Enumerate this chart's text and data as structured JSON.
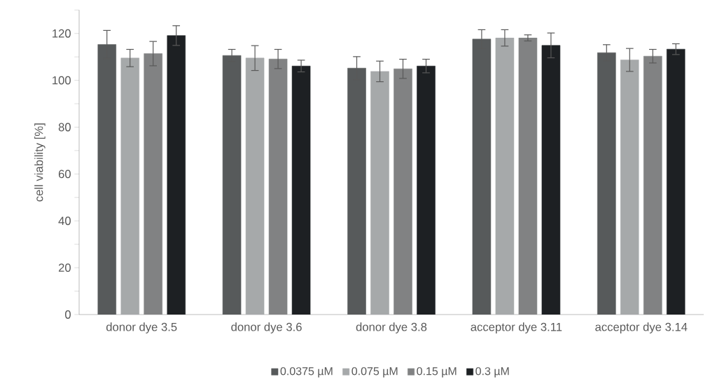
{
  "chart_data": {
    "type": "bar",
    "ylabel": "cell viability [%]",
    "categories": [
      "donor dye 3.5",
      "donor dye 3.6",
      "donor dye 3.8",
      "acceptor dye 3.11",
      "acceptor dye 3.14"
    ],
    "series": [
      {
        "name": "0.0375 µM",
        "color": "#575a5b",
        "values": [
          115.3,
          110.6,
          105.2,
          117.6,
          111.8
        ],
        "errors": [
          6.0,
          2.6,
          4.9,
          4.0,
          3.4
        ]
      },
      {
        "name": "0.075 µM",
        "color": "#a6a9aa",
        "values": [
          109.5,
          109.5,
          103.8,
          118.1,
          108.7
        ],
        "errors": [
          3.7,
          5.3,
          4.4,
          3.5,
          4.9
        ]
      },
      {
        "name": "0.15 µM",
        "color": "#818283",
        "values": [
          111.4,
          109.1,
          104.9,
          118.1,
          110.3
        ],
        "errors": [
          5.2,
          4.1,
          4.1,
          1.3,
          2.9
        ]
      },
      {
        "name": "0.3 µM",
        "color": "#1d2023",
        "values": [
          119.1,
          106.1,
          106.1,
          114.9,
          113.3
        ],
        "errors": [
          4.2,
          2.5,
          2.9,
          5.3,
          2.3
        ]
      }
    ],
    "ylim": [
      0,
      130
    ],
    "yticks": [
      0,
      {
        "value": 10,
        "label": null
      },
      20,
      {
        "value": 30,
        "label": null
      },
      40,
      {
        "value": 50,
        "label": null
      },
      60,
      {
        "value": 70,
        "label": null
      },
      80,
      {
        "value": 90,
        "label": null
      },
      100,
      {
        "value": 110,
        "label": null
      },
      120,
      {
        "value": 130,
        "label": null
      }
    ],
    "grid": false,
    "legend": "bottom",
    "marker": "square"
  }
}
